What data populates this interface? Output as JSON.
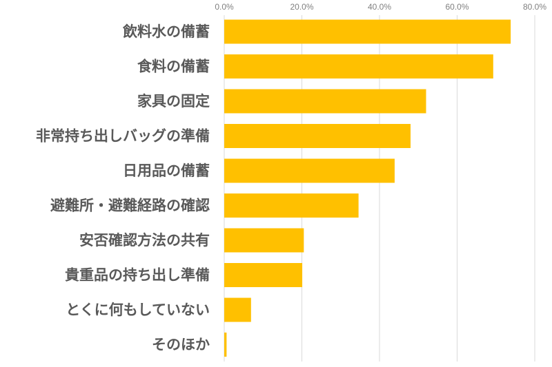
{
  "chart_data": {
    "type": "bar",
    "orientation": "horizontal",
    "title": "",
    "xlabel": "",
    "ylabel": "",
    "categories": [
      "飲料水の備蓄",
      "食料の備蓄",
      "家具の固定",
      "非常持ち出しバッグの準備",
      "日用品の備蓄",
      "避難所・避難経路の確認",
      "安否確認方法の共有",
      "貴重品の持ち出し準備",
      "とくに何もしていない",
      "そのほか"
    ],
    "values": [
      73.8,
      69.3,
      52.0,
      48.0,
      43.9,
      34.6,
      20.5,
      20.1,
      6.9,
      0.6
    ],
    "xlim": [
      0,
      80
    ],
    "x_ticks": [
      "0.0%",
      "20.0%",
      "40.0%",
      "60.0%",
      "80.0%"
    ],
    "x_axis_position": "top",
    "grid": true,
    "legend": "none",
    "bar_color": "#FFC000"
  }
}
